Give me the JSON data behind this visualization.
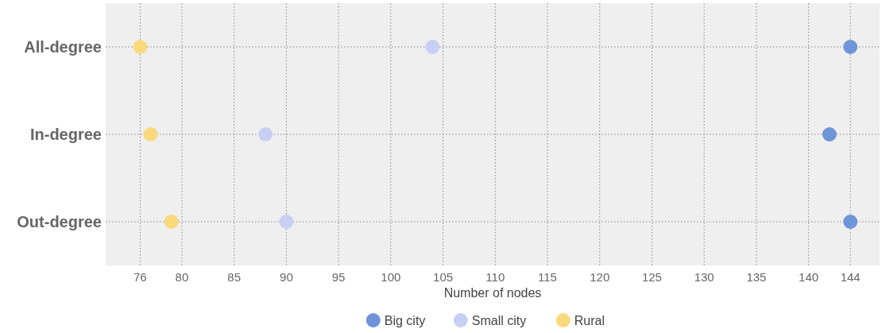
{
  "chart_data": {
    "type": "scatter",
    "orientation": "horizontal",
    "xlabel": "Number of nodes",
    "categories": [
      "All-degree",
      "In-degree",
      "Out-degree"
    ],
    "series": [
      {
        "name": "Big city",
        "color": "#7094d8",
        "values": [
          144,
          142,
          144
        ]
      },
      {
        "name": "Small city",
        "color": "#c8cff5",
        "values": [
          104,
          88,
          90
        ]
      },
      {
        "name": "Rural",
        "color": "#f9d97c",
        "values": [
          76,
          77,
          79
        ]
      }
    ],
    "xlim": [
      72.7,
      146.8
    ],
    "xticks": [
      76,
      80,
      85,
      90,
      95,
      100,
      105,
      110,
      115,
      120,
      125,
      130,
      135,
      140,
      144
    ],
    "grid": true,
    "legend": "bottom",
    "marker": "circle"
  }
}
